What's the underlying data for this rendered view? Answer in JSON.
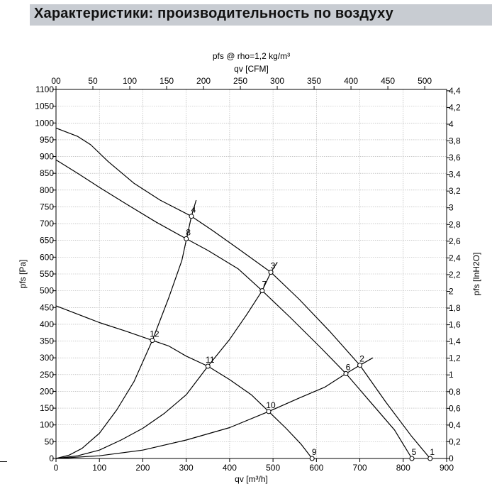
{
  "page": {
    "title": "Характеристики: производительность по воздуху"
  },
  "chart_data": {
    "type": "line",
    "title": "pfs @ rho=1,2 kg/m³",
    "xlabel": "qv [m³/h]",
    "x2label": "qv [CFM]",
    "ylabel": "pfs [Pa]",
    "y2label": "pfs [InH2O]",
    "xlim": [
      0,
      900
    ],
    "ylim": [
      0,
      1100
    ],
    "x2lim": [
      0,
      529.7
    ],
    "y2lim": [
      0,
      4.416
    ],
    "x_ticks": [
      "0",
      "100",
      "200",
      "300",
      "400",
      "500",
      "600",
      "700",
      "800",
      "900"
    ],
    "x2_ticks": [
      "00",
      "50",
      "100",
      "150",
      "200",
      "250",
      "300",
      "350",
      "400",
      "450",
      "500"
    ],
    "x2_tick_values": [
      0,
      50,
      100,
      150,
      200,
      250,
      300,
      350,
      400,
      450,
      500
    ],
    "y_ticks": [
      "0",
      "50",
      "100",
      "150",
      "200",
      "250",
      "300",
      "350",
      "400",
      "450",
      "500",
      "550",
      "600",
      "650",
      "700",
      "750",
      "800",
      "850",
      "900",
      "950",
      "1000",
      "1050",
      "1100"
    ],
    "y2_ticks": [
      "0",
      "0,2",
      "0,4",
      "0,6",
      "0,8",
      "1",
      "1,2",
      "1,4",
      "1,6",
      "1,8",
      "2",
      "2,2",
      "2,4",
      "2,6",
      "2,8",
      "3",
      "3,2",
      "3,4",
      "3,6",
      "3,8",
      "4",
      "4,2",
      "4,4"
    ],
    "y2_tick_values": [
      0,
      0.2,
      0.4,
      0.6,
      0.8,
      1.0,
      1.2,
      1.4,
      1.6,
      1.8,
      2.0,
      2.2,
      2.4,
      2.6,
      2.8,
      3.0,
      3.2,
      3.4,
      3.6,
      3.8,
      4.0,
      4.2,
      4.4
    ],
    "grid": true,
    "series": [
      {
        "points": [
          [
            0,
            985
          ],
          [
            50,
            960
          ],
          [
            80,
            935
          ],
          [
            120,
            885
          ],
          [
            180,
            820
          ],
          [
            240,
            770
          ],
          [
            312,
            722
          ],
          [
            360,
            680
          ],
          [
            420,
            625
          ],
          [
            495,
            555
          ],
          [
            560,
            475
          ],
          [
            630,
            380
          ],
          [
            700,
            278
          ],
          [
            760,
            168
          ],
          [
            820,
            65
          ],
          [
            862,
            0
          ]
        ]
      },
      {
        "points": [
          [
            0,
            890
          ],
          [
            50,
            850
          ],
          [
            100,
            808
          ],
          [
            160,
            760
          ],
          [
            230,
            705
          ],
          [
            300,
            655
          ],
          [
            350,
            620
          ],
          [
            420,
            565
          ],
          [
            475,
            500
          ],
          [
            540,
            420
          ],
          [
            610,
            330
          ],
          [
            668,
            253
          ],
          [
            720,
            175
          ],
          [
            780,
            85
          ],
          [
            820,
            0
          ]
        ]
      },
      {
        "points": [
          [
            0,
            455
          ],
          [
            50,
            430
          ],
          [
            100,
            405
          ],
          [
            160,
            380
          ],
          [
            222,
            352
          ],
          [
            260,
            335
          ],
          [
            300,
            305
          ],
          [
            350,
            275
          ],
          [
            400,
            235
          ],
          [
            450,
            190
          ],
          [
            490,
            140
          ],
          [
            530,
            90
          ],
          [
            565,
            42
          ],
          [
            590,
            0
          ]
        ]
      },
      {
        "points": [
          [
            0,
            0
          ],
          [
            30,
            10
          ],
          [
            60,
            30
          ],
          [
            100,
            75
          ],
          [
            140,
            145
          ],
          [
            180,
            230
          ],
          [
            222,
            352
          ],
          [
            260,
            480
          ],
          [
            290,
            590
          ],
          [
            312,
            722
          ],
          [
            323,
            770
          ]
        ]
      },
      {
        "points": [
          [
            0,
            0
          ],
          [
            50,
            8
          ],
          [
            100,
            25
          ],
          [
            150,
            55
          ],
          [
            200,
            90
          ],
          [
            250,
            135
          ],
          [
            300,
            190
          ],
          [
            350,
            275
          ],
          [
            400,
            355
          ],
          [
            440,
            430
          ],
          [
            475,
            500
          ],
          [
            495,
            555
          ],
          [
            510,
            585
          ]
        ]
      },
      {
        "points": [
          [
            0,
            0
          ],
          [
            100,
            8
          ],
          [
            200,
            25
          ],
          [
            300,
            55
          ],
          [
            400,
            92
          ],
          [
            490,
            140
          ],
          [
            560,
            180
          ],
          [
            620,
            213
          ],
          [
            668,
            253
          ],
          [
            700,
            278
          ],
          [
            730,
            300
          ]
        ]
      }
    ],
    "markers": [
      {
        "label": "1",
        "x": 862,
        "y": 0
      },
      {
        "label": "2",
        "x": 700,
        "y": 278
      },
      {
        "label": "3",
        "x": 495,
        "y": 555
      },
      {
        "label": "4",
        "x": 312,
        "y": 722
      },
      {
        "label": "5",
        "x": 820,
        "y": 0
      },
      {
        "label": "6",
        "x": 668,
        "y": 253
      },
      {
        "label": "7",
        "x": 475,
        "y": 500
      },
      {
        "label": "8",
        "x": 300,
        "y": 655
      },
      {
        "label": "9",
        "x": 590,
        "y": 0
      },
      {
        "label": "10",
        "x": 490,
        "y": 140
      },
      {
        "label": "11",
        "x": 350,
        "y": 275
      },
      {
        "label": "12",
        "x": 222,
        "y": 352
      }
    ]
  }
}
